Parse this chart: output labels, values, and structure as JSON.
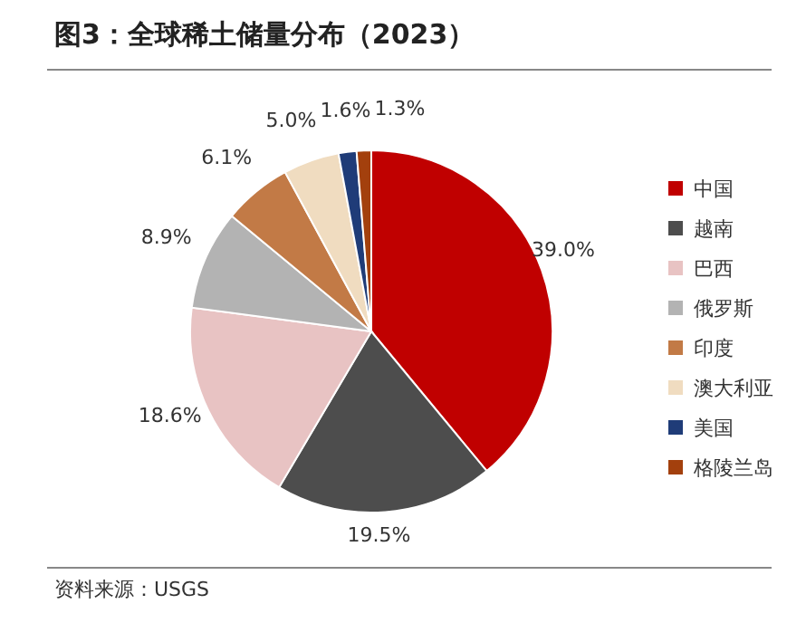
{
  "chart_data": {
    "type": "pie",
    "title": "图3：全球稀土储量分布（2023）",
    "categories": [
      "中国",
      "越南",
      "巴西",
      "俄罗斯",
      "印度",
      "澳大利亚",
      "美国",
      "格陵兰岛"
    ],
    "values": [
      39.0,
      19.5,
      18.6,
      8.9,
      6.1,
      5.0,
      1.6,
      1.3
    ],
    "colors": [
      "#c00000",
      "#4d4d4d",
      "#e8c3c3",
      "#b3b3b3",
      "#c27a46",
      "#f0dcc0",
      "#1f3c78",
      "#a3400d"
    ],
    "value_labels": [
      "39.0%",
      "19.5%",
      "18.6%",
      "8.9%",
      "6.1%",
      "5.0%",
      "1.6%",
      "1.3%"
    ],
    "legend": "right",
    "annotations": [
      "资料来源：USGS"
    ]
  }
}
